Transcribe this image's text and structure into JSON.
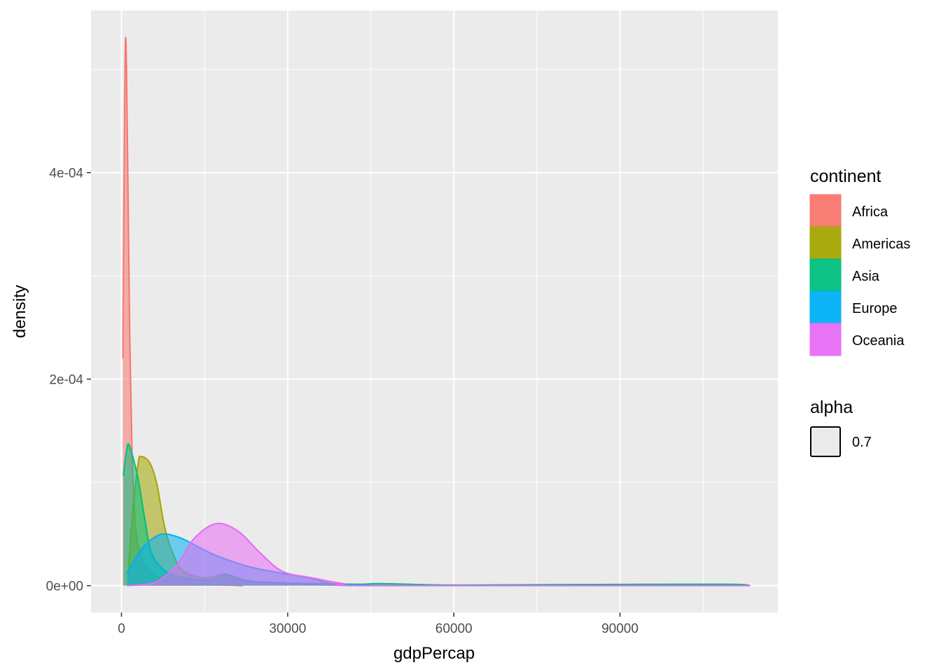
{
  "chart_data": {
    "type": "area",
    "xlabel": "gdpPercap",
    "ylabel": "density",
    "xlim": [
      -5500,
      118500
    ],
    "ylim": [
      -2.6e-05,
      0.000557
    ],
    "x_ticks": [
      0,
      30000,
      60000,
      90000
    ],
    "x_tick_labels": [
      "0",
      "30000",
      "60000",
      "90000"
    ],
    "y_ticks": [
      0,
      0.0002,
      0.0004
    ],
    "y_tick_labels": [
      "0e+00",
      "2e-04",
      "4e-04"
    ],
    "grid": true,
    "legend_position": "right",
    "legend": {
      "title": "continent",
      "alpha_title": "alpha",
      "alpha_value": "0.7"
    },
    "series": [
      {
        "name": "Africa",
        "color": "#F8766D",
        "points": [
          [
            241,
            0.00022
          ],
          [
            500,
            0.00042
          ],
          [
            760,
            0.000531
          ],
          [
            1100,
            0.00042
          ],
          [
            1500,
            0.00024
          ],
          [
            1900,
            0.00013
          ],
          [
            2500,
            6e-05
          ],
          [
            3500,
            2.8e-05
          ],
          [
            5000,
            1.4e-05
          ],
          [
            8000,
            5e-06
          ],
          [
            12000,
            2e-06
          ],
          [
            21951,
            0
          ]
        ]
      },
      {
        "name": "Americas",
        "color": "#A3A500",
        "points": [
          [
            1202,
            1.1e-05
          ],
          [
            2000,
            7e-05
          ],
          [
            3000,
            0.000118
          ],
          [
            3560,
            0.000125
          ],
          [
            5100,
            0.000119
          ],
          [
            6360,
            9.9e-05
          ],
          [
            7750,
            5.8e-05
          ],
          [
            9280,
            3.1e-05
          ],
          [
            11200,
            1.4e-05
          ],
          [
            15000,
            7.5e-06
          ],
          [
            18800,
            1.1e-05
          ],
          [
            22600,
            5e-06
          ],
          [
            29000,
            2e-06
          ],
          [
            42952,
            0
          ]
        ]
      },
      {
        "name": "Asia",
        "color": "#00BF7D",
        "points": [
          [
            331,
            0.000106
          ],
          [
            900,
            0.00013
          ],
          [
            1400,
            0.000136
          ],
          [
            2900,
            0.000106
          ],
          [
            4200,
            6.5e-05
          ],
          [
            5470,
            3.1e-05
          ],
          [
            8000,
            1.4e-05
          ],
          [
            11200,
            7.5e-06
          ],
          [
            16300,
            5.4e-06
          ],
          [
            18800,
            1.1e-05
          ],
          [
            23900,
            4e-06
          ],
          [
            41700,
            1.4e-06
          ],
          [
            47000,
            2e-06
          ],
          [
            60000,
            5e-07
          ],
          [
            81000,
            1e-06
          ],
          [
            109000,
            1.4e-06
          ],
          [
            113523,
            0
          ]
        ]
      },
      {
        "name": "Europe",
        "color": "#00B0F6",
        "points": [
          [
            973,
            1.2e-05
          ],
          [
            3560,
            3.5e-05
          ],
          [
            6000,
            4.7e-05
          ],
          [
            8000,
            5e-05
          ],
          [
            11200,
            4.5e-05
          ],
          [
            16300,
            3.1e-05
          ],
          [
            22600,
            1.9e-05
          ],
          [
            29000,
            1.2e-05
          ],
          [
            34000,
            7.5e-06
          ],
          [
            39000,
            1.4e-06
          ],
          [
            49357,
            0
          ]
        ]
      },
      {
        "name": "Oceania",
        "color": "#E76BF3",
        "points": [
          [
            1000,
            0
          ],
          [
            6000,
            3e-06
          ],
          [
            10000,
            2e-05
          ],
          [
            13000,
            4.5e-05
          ],
          [
            17000,
            6e-05
          ],
          [
            21000,
            5.3e-05
          ],
          [
            25000,
            3.2e-05
          ],
          [
            29000,
            1.4e-05
          ],
          [
            34000,
            8e-06
          ],
          [
            40000,
            2e-06
          ],
          [
            45000,
            0
          ],
          [
            113500,
            0
          ]
        ]
      }
    ]
  }
}
